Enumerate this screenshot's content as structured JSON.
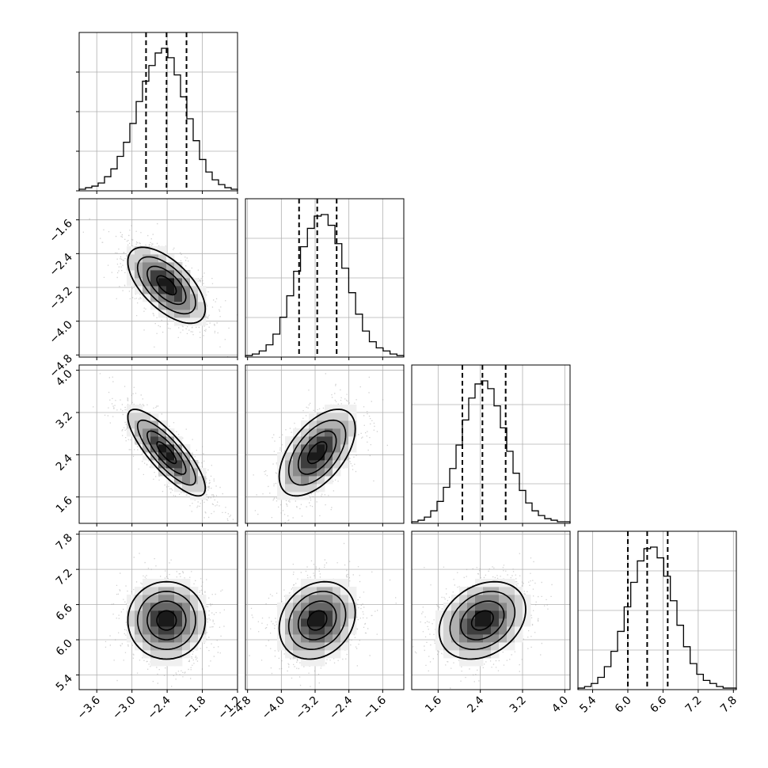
{
  "chart_data": {
    "type": "corner",
    "parameters": [
      {
        "ticks": [
          -3.6,
          -3.0,
          -2.4,
          -1.8,
          -1.2
        ],
        "range": [
          -3.9,
          -1.2
        ],
        "quantiles": [
          -2.76,
          -2.41,
          -2.07
        ]
      },
      {
        "ticks": [
          -4.8,
          -4.0,
          -3.2,
          -2.4,
          -1.6
        ],
        "range": [
          -4.85,
          -1.1
        ],
        "quantiles": [
          -3.58,
          -3.15,
          -2.69
        ]
      },
      {
        "ticks": [
          1.6,
          2.4,
          3.2,
          4.0
        ],
        "range": [
          1.1,
          4.1
        ],
        "quantiles": [
          2.06,
          2.44,
          2.88
        ]
      },
      {
        "ticks": [
          5.4,
          6.0,
          6.6,
          7.2,
          7.8
        ],
        "range": [
          5.15,
          7.85
        ],
        "quantiles": [
          6.0,
          6.33,
          6.68
        ]
      }
    ],
    "tick_labels": [
      [
        "−3.6",
        "−3.0",
        "−2.4",
        "−1.8",
        "−1.2"
      ],
      [
        "−4.8",
        "−4.0",
        "−3.2",
        "−2.4",
        "−1.6"
      ],
      [
        "1.6",
        "2.4",
        "3.2",
        "4.0"
      ],
      [
        "5.4",
        "6.0",
        "6.6",
        "7.2",
        "7.8"
      ]
    ],
    "histograms": [
      {
        "edges": [
          -3.9,
          -1.2
        ],
        "counts": [
          1,
          2,
          3,
          5,
          9,
          14,
          22,
          31,
          43,
          57,
          70,
          80,
          88,
          91,
          85,
          74,
          60,
          46,
          32,
          20,
          12,
          7,
          4,
          2,
          1
        ]
      },
      {
        "edges": [
          -4.85,
          -1.1
        ],
        "counts": [
          1,
          2,
          4,
          8,
          15,
          26,
          40,
          56,
          72,
          84,
          92,
          93,
          86,
          74,
          58,
          42,
          28,
          17,
          10,
          6,
          4,
          2,
          1
        ]
      },
      {
        "edges": [
          1.1,
          4.1
        ],
        "counts": [
          1,
          2,
          4,
          8,
          14,
          23,
          35,
          50,
          66,
          80,
          89,
          91,
          86,
          75,
          61,
          46,
          32,
          21,
          13,
          8,
          5,
          3,
          2,
          1,
          1
        ]
      },
      {
        "edges": [
          5.15,
          7.85
        ],
        "counts": [
          1,
          2,
          4,
          8,
          15,
          25,
          38,
          54,
          70,
          84,
          92,
          93,
          86,
          74,
          58,
          42,
          28,
          17,
          10,
          6,
          4,
          2,
          1,
          1
        ]
      }
    ],
    "quantile_levels": [
      0.16,
      0.5,
      0.84
    ],
    "correlations": [
      [
        1,
        -0.62,
        -0.82,
        0.0
      ],
      [
        -0.62,
        1,
        0.55,
        0.2
      ],
      [
        -0.82,
        0.55,
        1,
        0.28
      ],
      [
        0.0,
        0.2,
        0.28,
        1
      ]
    ],
    "means": [
      -2.41,
      -3.15,
      2.44,
      6.33
    ],
    "sigmas": [
      0.33,
      0.45,
      0.41,
      0.33
    ],
    "grid": true
  }
}
